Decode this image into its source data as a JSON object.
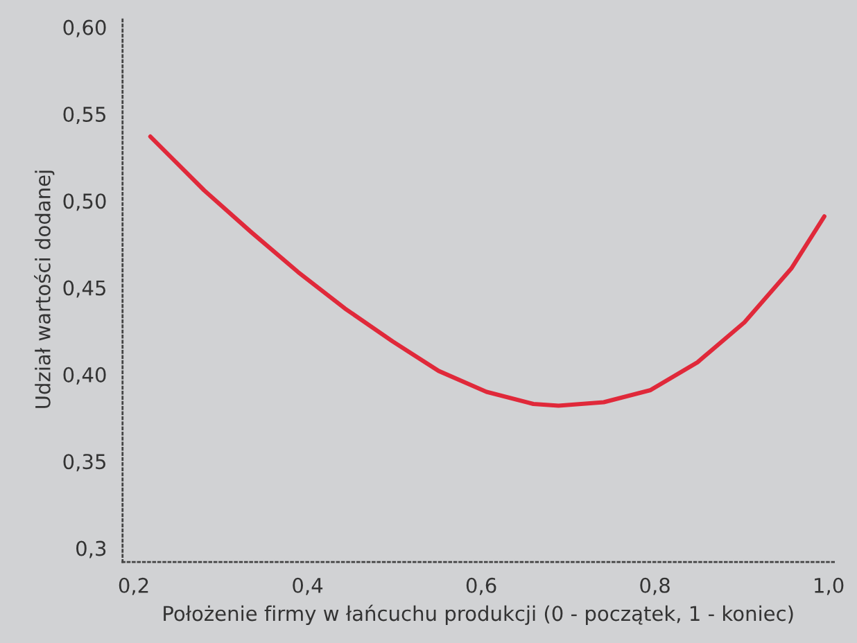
{
  "chart_data": {
    "type": "line",
    "xlabel": "Położenie firmy w łańcuchu produkcji (0 - początek, 1 - koniec)",
    "ylabel": "Udział wartości dodanej",
    "x": [
      0.219,
      0.281,
      0.335,
      0.389,
      0.443,
      0.498,
      0.551,
      0.606,
      0.66,
      0.689,
      0.741,
      0.795,
      0.849,
      0.903,
      0.957,
      0.995
    ],
    "series": [
      {
        "color": "#e0293a",
        "values": [
          0.537,
          0.506,
          0.482,
          0.459,
          0.438,
          0.419,
          0.402,
          0.39,
          0.383,
          0.382,
          0.384,
          0.391,
          0.407,
          0.43,
          0.461,
          0.491
        ]
      }
    ],
    "xlim": [
      0.187,
      1.006
    ],
    "ylim": [
      0.292,
      0.606
    ],
    "xticks": [
      {
        "value": 0.2,
        "label": "0,2"
      },
      {
        "value": 0.4,
        "label": "0,4"
      },
      {
        "value": 0.6,
        "label": "0,6"
      },
      {
        "value": 0.8,
        "label": "0,8"
      },
      {
        "value": 1.0,
        "label": "1,0"
      }
    ],
    "yticks": [
      {
        "value": 0.3,
        "label": "0,3"
      },
      {
        "value": 0.35,
        "label": "0,35"
      },
      {
        "value": 0.4,
        "label": "0,40"
      },
      {
        "value": 0.45,
        "label": "0,45"
      },
      {
        "value": 0.5,
        "label": "0,50"
      },
      {
        "value": 0.55,
        "label": "0,55"
      },
      {
        "value": 0.6,
        "label": "0,60"
      }
    ],
    "grid": false,
    "marker": "none",
    "line_style": "solid"
  }
}
